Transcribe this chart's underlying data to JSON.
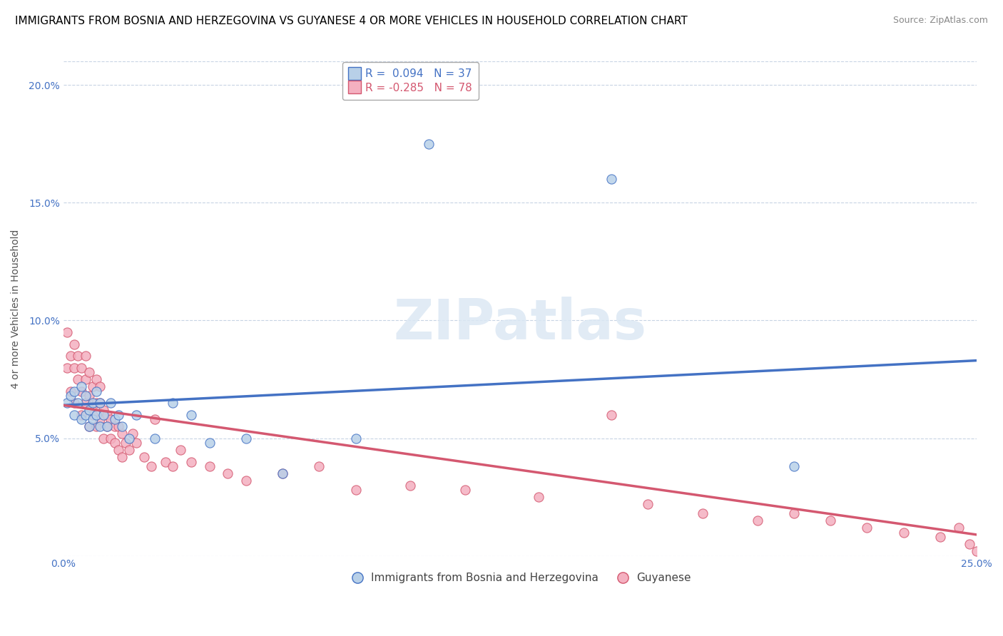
{
  "title": "IMMIGRANTS FROM BOSNIA AND HERZEGOVINA VS GUYANESE 4 OR MORE VEHICLES IN HOUSEHOLD CORRELATION CHART",
  "source": "Source: ZipAtlas.com",
  "xlabel": "",
  "ylabel": "4 or more Vehicles in Household",
  "xlim": [
    0.0,
    0.25
  ],
  "ylim": [
    0.0,
    0.21
  ],
  "xticks": [
    0.0,
    0.05,
    0.1,
    0.15,
    0.2,
    0.25
  ],
  "xticklabels": [
    "0.0%",
    "",
    "",
    "",
    "",
    "25.0%"
  ],
  "yticks": [
    0.0,
    0.05,
    0.1,
    0.15,
    0.2
  ],
  "yticklabels": [
    "",
    "5.0%",
    "10.0%",
    "15.0%",
    "20.0%"
  ],
  "bosnia_color": "#b8d0e8",
  "guyanese_color": "#f4b0c0",
  "bosnia_line_color": "#4472c4",
  "guyanese_line_color": "#d45870",
  "bosnia_R": 0.094,
  "bosnia_N": 37,
  "guyanese_R": -0.285,
  "guyanese_N": 78,
  "watermark": "ZIPatlas",
  "legend_label_bosnia": "Immigrants from Bosnia and Herzegovina",
  "legend_label_guyanese": "Guyanese",
  "bosnia_line_x0": 0.0,
  "bosnia_line_y0": 0.064,
  "bosnia_line_x1": 0.25,
  "bosnia_line_y1": 0.083,
  "guyanese_line_x0": 0.0,
  "guyanese_line_y0": 0.064,
  "guyanese_line_x1": 0.25,
  "guyanese_line_y1": 0.009,
  "bosnia_scatter_x": [
    0.001,
    0.002,
    0.003,
    0.003,
    0.004,
    0.005,
    0.005,
    0.006,
    0.006,
    0.007,
    0.007,
    0.008,
    0.008,
    0.009,
    0.009,
    0.01,
    0.01,
    0.011,
    0.012,
    0.013,
    0.014,
    0.015,
    0.016,
    0.018,
    0.02,
    0.025,
    0.03,
    0.035,
    0.04,
    0.05,
    0.06,
    0.08,
    0.1,
    0.15,
    0.2
  ],
  "bosnia_scatter_y": [
    0.065,
    0.068,
    0.06,
    0.07,
    0.065,
    0.058,
    0.072,
    0.06,
    0.068,
    0.055,
    0.062,
    0.065,
    0.058,
    0.07,
    0.06,
    0.055,
    0.065,
    0.06,
    0.055,
    0.065,
    0.058,
    0.06,
    0.055,
    0.05,
    0.06,
    0.05,
    0.065,
    0.06,
    0.048,
    0.05,
    0.035,
    0.05,
    0.175,
    0.16,
    0.038
  ],
  "guyanese_scatter_x": [
    0.001,
    0.001,
    0.002,
    0.002,
    0.003,
    0.003,
    0.003,
    0.004,
    0.004,
    0.005,
    0.005,
    0.005,
    0.006,
    0.006,
    0.006,
    0.007,
    0.007,
    0.007,
    0.008,
    0.008,
    0.009,
    0.009,
    0.009,
    0.01,
    0.01,
    0.01,
    0.011,
    0.011,
    0.012,
    0.012,
    0.013,
    0.013,
    0.014,
    0.014,
    0.015,
    0.015,
    0.016,
    0.016,
    0.017,
    0.018,
    0.019,
    0.02,
    0.022,
    0.024,
    0.025,
    0.028,
    0.03,
    0.032,
    0.035,
    0.04,
    0.045,
    0.05,
    0.06,
    0.07,
    0.08,
    0.095,
    0.11,
    0.13,
    0.15,
    0.16,
    0.175,
    0.19,
    0.2,
    0.21,
    0.22,
    0.23,
    0.24,
    0.245,
    0.248,
    0.25
  ],
  "guyanese_scatter_y": [
    0.08,
    0.095,
    0.07,
    0.085,
    0.065,
    0.08,
    0.09,
    0.075,
    0.085,
    0.06,
    0.07,
    0.08,
    0.065,
    0.075,
    0.085,
    0.055,
    0.068,
    0.078,
    0.06,
    0.072,
    0.055,
    0.065,
    0.075,
    0.058,
    0.065,
    0.072,
    0.05,
    0.062,
    0.055,
    0.06,
    0.05,
    0.058,
    0.048,
    0.055,
    0.045,
    0.055,
    0.042,
    0.052,
    0.048,
    0.045,
    0.052,
    0.048,
    0.042,
    0.038,
    0.058,
    0.04,
    0.038,
    0.045,
    0.04,
    0.038,
    0.035,
    0.032,
    0.035,
    0.038,
    0.028,
    0.03,
    0.028,
    0.025,
    0.06,
    0.022,
    0.018,
    0.015,
    0.018,
    0.015,
    0.012,
    0.01,
    0.008,
    0.012,
    0.005,
    0.002
  ],
  "title_fontsize": 11,
  "source_fontsize": 9,
  "axis_label_fontsize": 10,
  "tick_fontsize": 10,
  "legend_fontsize": 11
}
